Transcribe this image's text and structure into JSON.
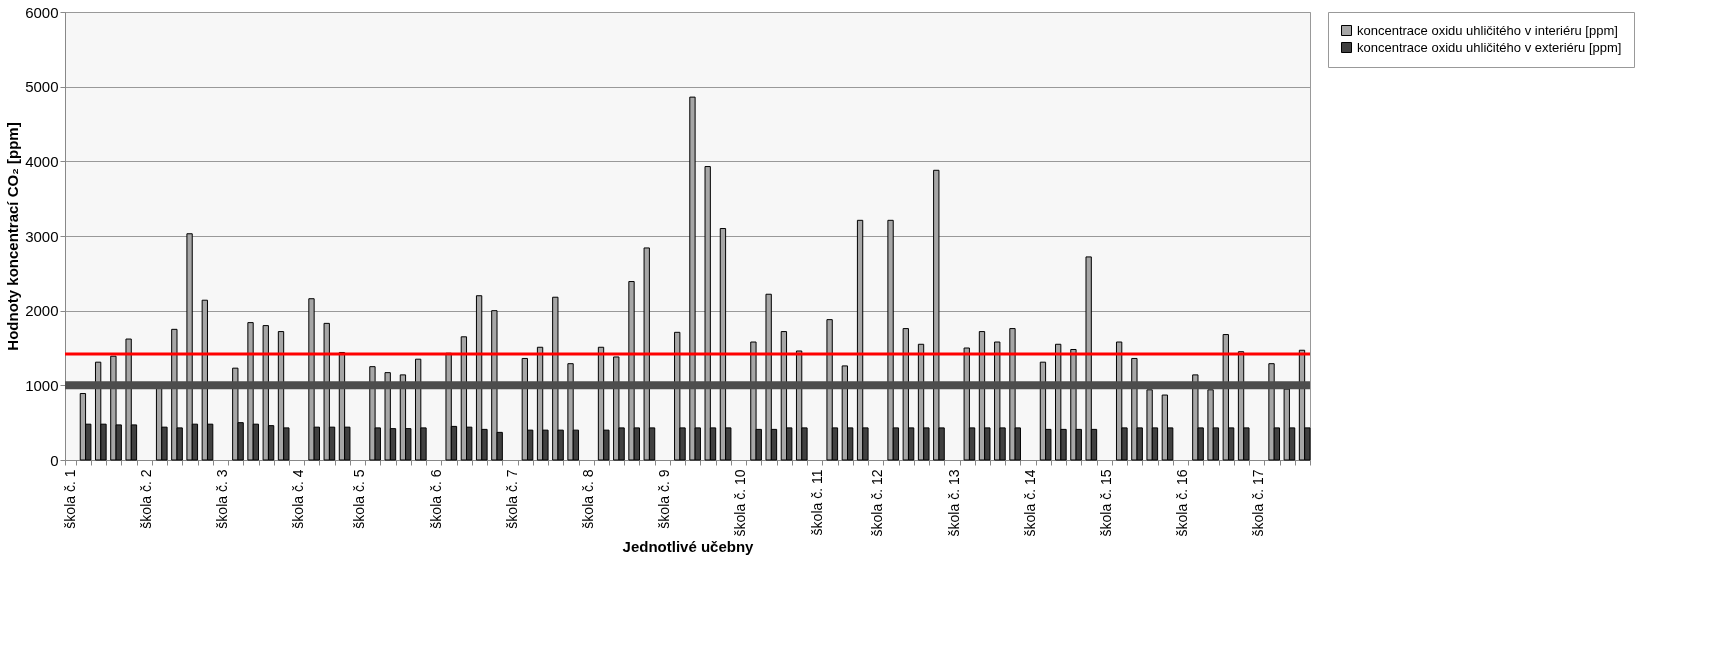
{
  "chart_data": {
    "type": "bar",
    "xlabel": "Jednotlivé učebny",
    "ylabel": "Hodnoty koncentrací CO₂ [ppm]",
    "categories": [
      "škola č. 1",
      null,
      null,
      null,
      null,
      "škola č. 2",
      null,
      null,
      null,
      null,
      "škola č. 3",
      null,
      null,
      null,
      null,
      "škola č. 4",
      null,
      null,
      null,
      "škola č. 5",
      null,
      null,
      null,
      null,
      "škola č. 6",
      null,
      null,
      null,
      null,
      "škola č. 7",
      null,
      null,
      null,
      null,
      "škola č. 8",
      null,
      null,
      null,
      null,
      "škola č. 9",
      null,
      null,
      null,
      null,
      "škola č. 10",
      null,
      null,
      null,
      null,
      "škola č. 11",
      null,
      null,
      null,
      "škola č. 12",
      null,
      null,
      null,
      null,
      "škola č. 13",
      null,
      null,
      null,
      null,
      "škola č. 14",
      null,
      null,
      null,
      null,
      "škola č. 15",
      null,
      null,
      null,
      null,
      "škola č. 16",
      null,
      null,
      null,
      null,
      "škola č. 17",
      null,
      null,
      null
    ],
    "series": [
      {
        "name": "koncentrace oxidu uhličitého v interiéru [ppm]",
        "color": "#a6a6a6",
        "values": [
          null,
          890,
          1310,
          1390,
          1620,
          null,
          1000,
          1750,
          3030,
          2140,
          null,
          1230,
          1840,
          1800,
          1720,
          null,
          2160,
          1830,
          1440,
          null,
          1250,
          1170,
          1140,
          1350,
          null,
          1430,
          1650,
          2200,
          2000,
          null,
          1360,
          1510,
          2180,
          1290,
          null,
          1510,
          1380,
          2390,
          2840,
          null,
          1710,
          4860,
          3930,
          3100,
          null,
          1580,
          2220,
          1720,
          1460,
          null,
          1880,
          1260,
          3210,
          null,
          3210,
          1760,
          1550,
          3880,
          null,
          1500,
          1720,
          1580,
          1760,
          null,
          1310,
          1550,
          1480,
          2720,
          null,
          1580,
          1360,
          940,
          870,
          null,
          1140,
          940,
          1680,
          1450,
          null,
          1290,
          950,
          1470
        ]
      },
      {
        "name": "koncentrace oxidu uhličitého v exteriéru [ppm]",
        "color": "#404040",
        "values": [
          null,
          480,
          480,
          470,
          470,
          null,
          440,
          430,
          480,
          480,
          null,
          500,
          480,
          460,
          430,
          null,
          440,
          440,
          440,
          null,
          430,
          420,
          420,
          430,
          null,
          450,
          440,
          410,
          370,
          null,
          400,
          400,
          400,
          400,
          null,
          400,
          430,
          430,
          430,
          null,
          430,
          430,
          430,
          430,
          null,
          410,
          410,
          430,
          430,
          null,
          430,
          430,
          430,
          null,
          430,
          430,
          430,
          430,
          null,
          430,
          430,
          430,
          430,
          null,
          410,
          410,
          410,
          410,
          null,
          430,
          430,
          430,
          430,
          null,
          430,
          430,
          430,
          430,
          null,
          430,
          430,
          430
        ]
      }
    ],
    "ylim": [
      0,
      6000
    ],
    "yticks": [
      0,
      1000,
      2000,
      3000,
      4000,
      5000,
      6000
    ],
    "ref_lines": [
      {
        "axis": "y",
        "value": 1000,
        "color": "#4d4d4d"
      },
      {
        "axis": "y",
        "value": 1420,
        "color": "#ff0000"
      }
    ],
    "grid": "y",
    "legend": "right"
  }
}
